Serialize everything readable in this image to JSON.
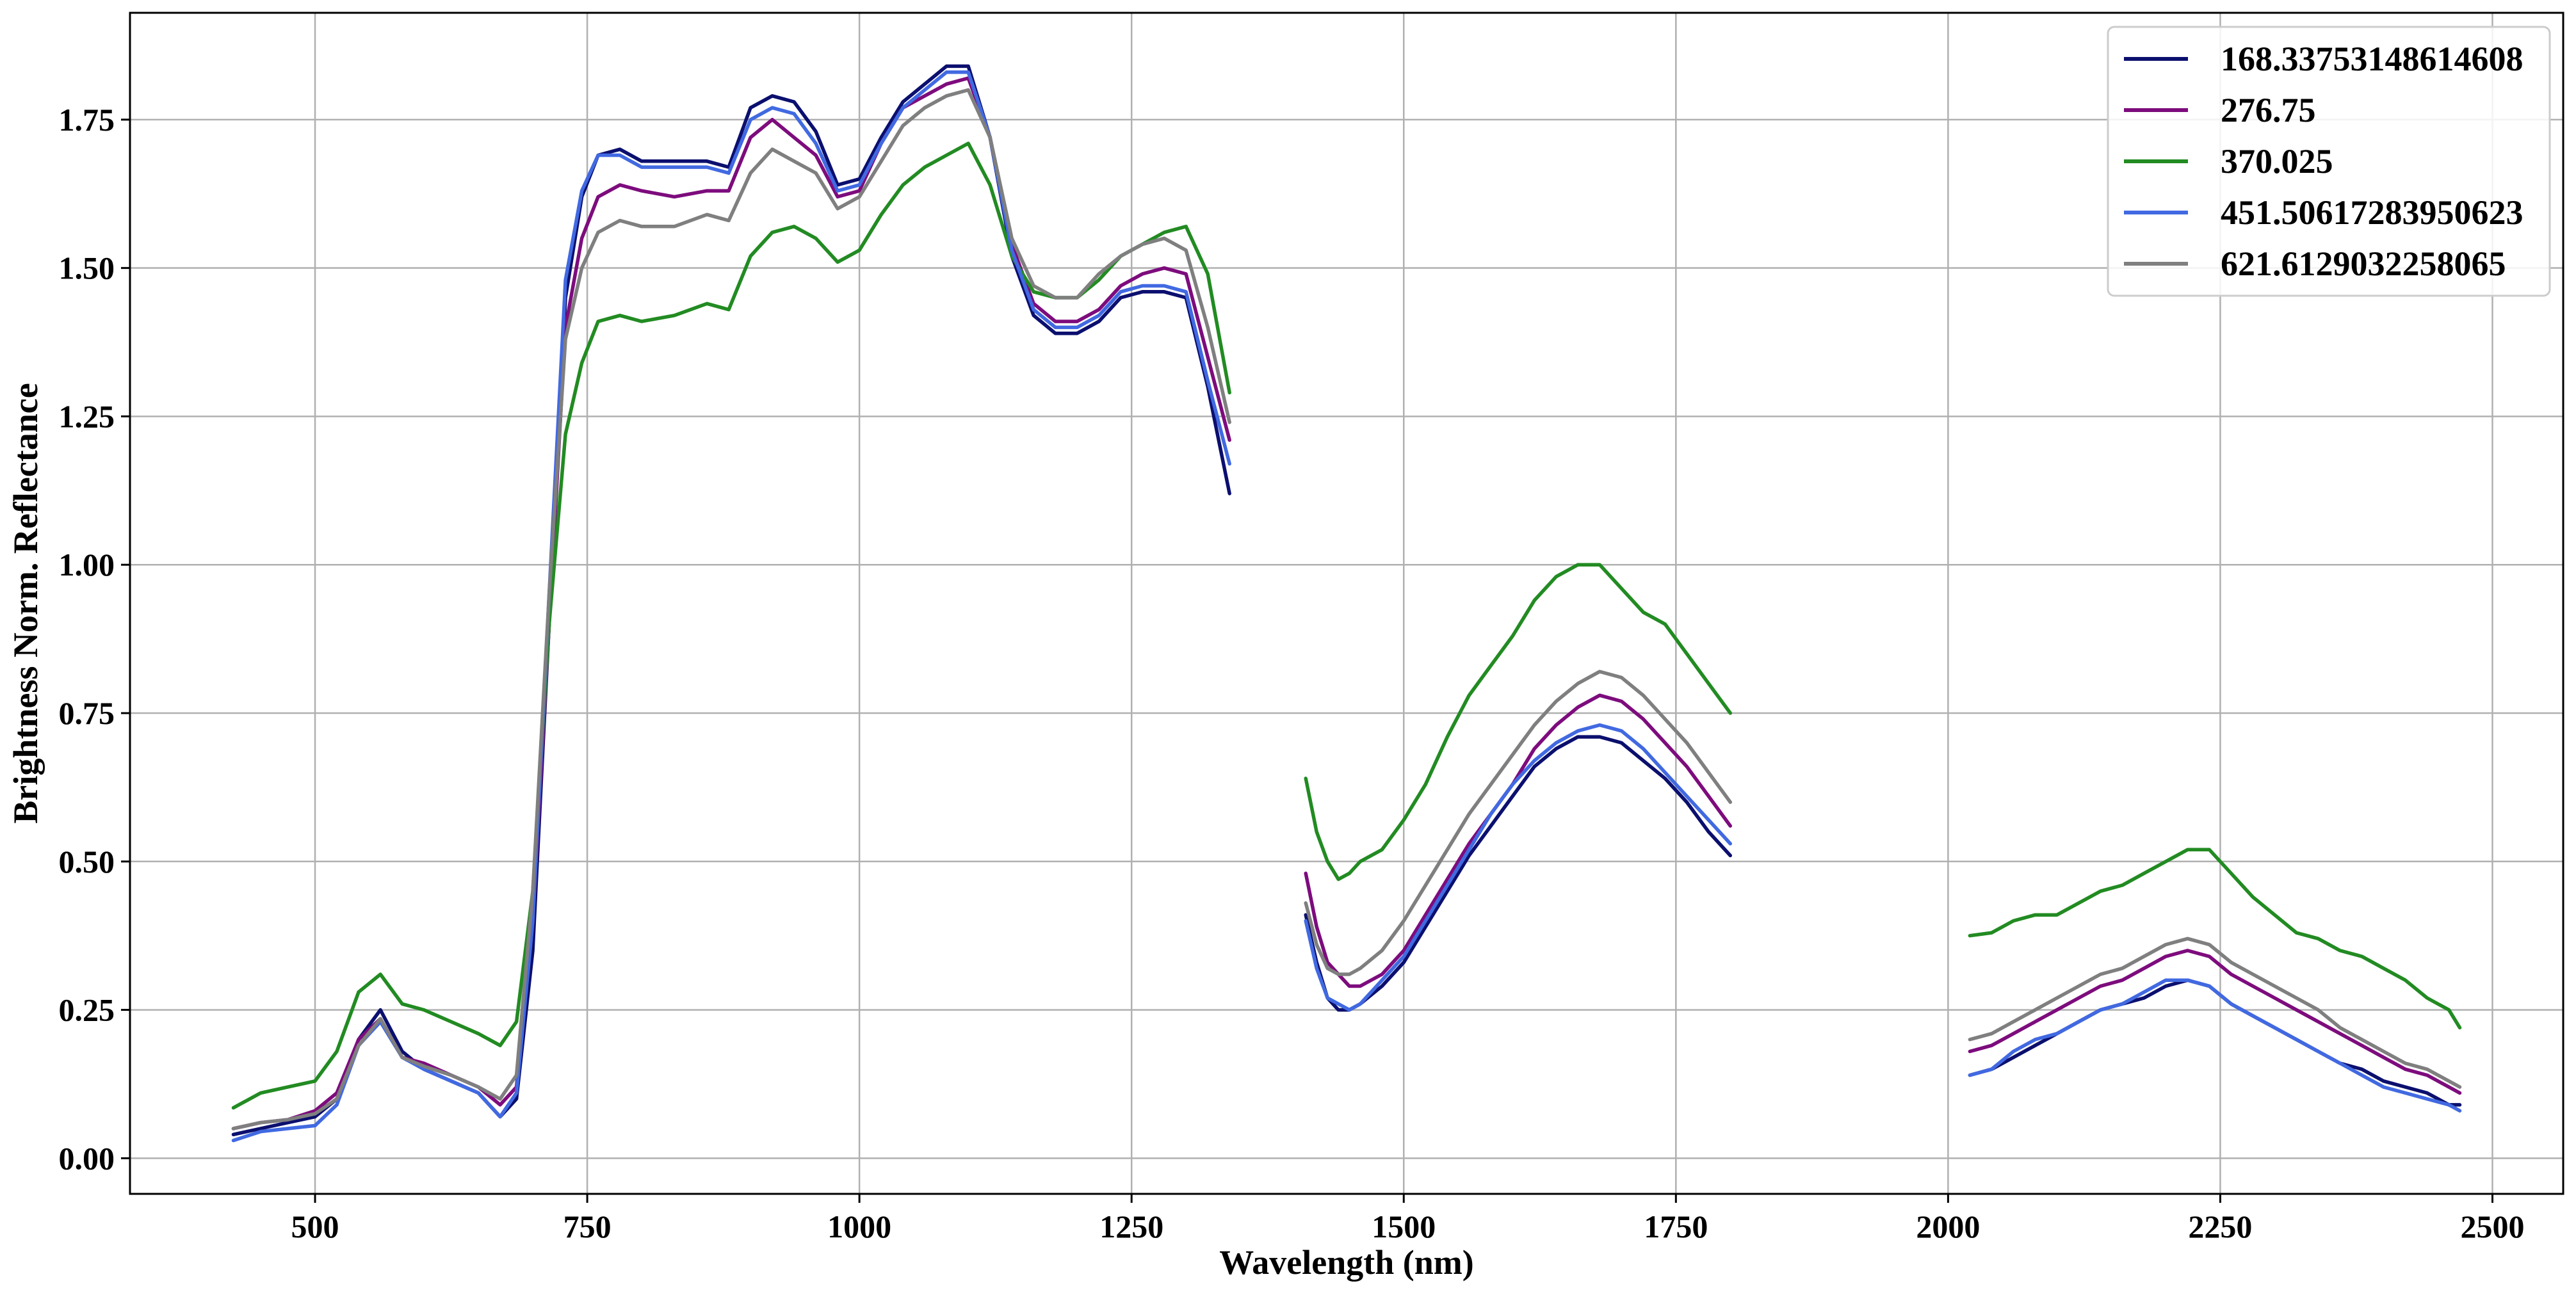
{
  "chart_data": {
    "type": "line",
    "title": "",
    "xlabel": "Wavelength (nm)",
    "ylabel": "Brightness Norm. Reflectance",
    "xlim": [
      330,
      2565
    ],
    "ylim": [
      -0.06,
      1.93
    ],
    "xticks": [
      500,
      750,
      1000,
      1250,
      1500,
      1750,
      2000,
      2250,
      2500
    ],
    "xtick_labels": [
      "500",
      "750",
      "1000",
      "1250",
      "1500",
      "1750",
      "2000",
      "2250",
      "2500"
    ],
    "yticks": [
      0.0,
      0.25,
      0.5,
      0.75,
      1.0,
      1.25,
      1.5,
      1.75
    ],
    "ytick_labels": [
      "0.00",
      "0.25",
      "0.50",
      "0.75",
      "1.00",
      "1.25",
      "1.50",
      "1.75"
    ],
    "grid": true,
    "legend_position": "top-right",
    "x_segments": [
      [
        425,
        450,
        475,
        500,
        520,
        540,
        560,
        580,
        600,
        625,
        650,
        670,
        685,
        700,
        715,
        730,
        745,
        760,
        780,
        800,
        830,
        860,
        880,
        900,
        920,
        940,
        960,
        980,
        1000,
        1020,
        1040,
        1060,
        1080,
        1100,
        1120,
        1140,
        1160,
        1180,
        1200,
        1220,
        1240,
        1260,
        1280,
        1300,
        1320,
        1340
      ],
      [
        1410,
        1420,
        1430,
        1440,
        1450,
        1460,
        1480,
        1500,
        1520,
        1540,
        1560,
        1580,
        1600,
        1620,
        1640,
        1660,
        1680,
        1700,
        1720,
        1740,
        1760,
        1780,
        1800
      ],
      [
        2020,
        2040,
        2060,
        2080,
        2100,
        2120,
        2140,
        2160,
        2180,
        2200,
        2220,
        2240,
        2260,
        2280,
        2300,
        2320,
        2340,
        2360,
        2380,
        2400,
        2420,
        2440,
        2460,
        2470
      ]
    ],
    "series": [
      {
        "name": "168.33753148614608",
        "color": "#0b0f6e",
        "values": [
          [
            0.04,
            0.05,
            0.06,
            0.07,
            0.1,
            0.2,
            0.25,
            0.18,
            0.15,
            0.13,
            0.11,
            0.07,
            0.1,
            0.35,
            0.9,
            1.45,
            1.62,
            1.69,
            1.7,
            1.68,
            1.68,
            1.68,
            1.67,
            1.77,
            1.79,
            1.78,
            1.73,
            1.64,
            1.65,
            1.72,
            1.78,
            1.81,
            1.84,
            1.84,
            1.72,
            1.52,
            1.42,
            1.39,
            1.39,
            1.41,
            1.45,
            1.46,
            1.46,
            1.45,
            1.3,
            1.12
          ],
          [
            0.41,
            0.33,
            0.27,
            0.25,
            0.25,
            0.26,
            0.29,
            0.33,
            0.39,
            0.45,
            0.51,
            0.56,
            0.61,
            0.66,
            0.69,
            0.71,
            0.71,
            0.7,
            0.67,
            0.64,
            0.6,
            0.55,
            0.51
          ],
          [
            0.14,
            0.15,
            0.17,
            0.19,
            0.21,
            0.23,
            0.25,
            0.26,
            0.27,
            0.29,
            0.3,
            0.29,
            0.26,
            0.24,
            0.22,
            0.2,
            0.18,
            0.16,
            0.15,
            0.13,
            0.12,
            0.11,
            0.09,
            0.09
          ]
        ]
      },
      {
        "name": "276.75",
        "color": "#7d0c7d",
        "values": [
          [
            0.05,
            0.06,
            0.065,
            0.08,
            0.11,
            0.2,
            0.235,
            0.17,
            0.16,
            0.14,
            0.12,
            0.09,
            0.12,
            0.4,
            0.9,
            1.4,
            1.55,
            1.62,
            1.64,
            1.63,
            1.62,
            1.63,
            1.63,
            1.72,
            1.75,
            1.72,
            1.69,
            1.62,
            1.63,
            1.71,
            1.77,
            1.79,
            1.81,
            1.82,
            1.72,
            1.54,
            1.44,
            1.41,
            1.41,
            1.43,
            1.47,
            1.49,
            1.5,
            1.49,
            1.35,
            1.21
          ],
          [
            0.48,
            0.39,
            0.33,
            0.31,
            0.29,
            0.29,
            0.31,
            0.35,
            0.41,
            0.47,
            0.53,
            0.58,
            0.63,
            0.69,
            0.73,
            0.76,
            0.78,
            0.77,
            0.74,
            0.7,
            0.66,
            0.61,
            0.56
          ],
          [
            0.18,
            0.19,
            0.21,
            0.23,
            0.25,
            0.27,
            0.29,
            0.3,
            0.32,
            0.34,
            0.35,
            0.34,
            0.31,
            0.29,
            0.27,
            0.25,
            0.23,
            0.21,
            0.19,
            0.17,
            0.15,
            0.14,
            0.12,
            0.11
          ]
        ]
      },
      {
        "name": "370.025",
        "color": "#228b22",
        "values": [
          [
            0.085,
            0.11,
            0.12,
            0.13,
            0.18,
            0.28,
            0.31,
            0.26,
            0.25,
            0.23,
            0.21,
            0.19,
            0.23,
            0.45,
            0.9,
            1.22,
            1.34,
            1.41,
            1.42,
            1.41,
            1.42,
            1.44,
            1.43,
            1.52,
            1.56,
            1.57,
            1.55,
            1.51,
            1.53,
            1.59,
            1.64,
            1.67,
            1.69,
            1.71,
            1.64,
            1.52,
            1.46,
            1.45,
            1.45,
            1.48,
            1.52,
            1.54,
            1.56,
            1.57,
            1.49,
            1.29
          ],
          [
            0.64,
            0.55,
            0.5,
            0.47,
            0.48,
            0.5,
            0.52,
            0.57,
            0.63,
            0.71,
            0.78,
            0.83,
            0.88,
            0.94,
            0.98,
            1.0,
            1.0,
            0.96,
            0.92,
            0.9,
            0.85,
            0.8,
            0.75
          ],
          [
            0.375,
            0.38,
            0.4,
            0.41,
            0.41,
            0.43,
            0.45,
            0.46,
            0.48,
            0.5,
            0.52,
            0.52,
            0.48,
            0.44,
            0.41,
            0.38,
            0.37,
            0.35,
            0.34,
            0.32,
            0.3,
            0.27,
            0.25,
            0.22
          ]
        ]
      },
      {
        "name": "451.50617283950623",
        "color": "#4169e1",
        "values": [
          [
            0.03,
            0.045,
            0.05,
            0.055,
            0.09,
            0.19,
            0.23,
            0.17,
            0.15,
            0.13,
            0.11,
            0.07,
            0.11,
            0.4,
            0.95,
            1.48,
            1.63,
            1.69,
            1.69,
            1.67,
            1.67,
            1.67,
            1.66,
            1.75,
            1.77,
            1.76,
            1.71,
            1.63,
            1.64,
            1.71,
            1.77,
            1.8,
            1.83,
            1.83,
            1.72,
            1.53,
            1.43,
            1.4,
            1.4,
            1.42,
            1.46,
            1.47,
            1.47,
            1.46,
            1.31,
            1.17
          ],
          [
            0.4,
            0.32,
            0.27,
            0.26,
            0.25,
            0.26,
            0.3,
            0.34,
            0.4,
            0.46,
            0.52,
            0.58,
            0.63,
            0.67,
            0.7,
            0.72,
            0.73,
            0.72,
            0.69,
            0.65,
            0.61,
            0.57,
            0.53
          ],
          [
            0.14,
            0.15,
            0.18,
            0.2,
            0.21,
            0.23,
            0.25,
            0.26,
            0.28,
            0.3,
            0.3,
            0.29,
            0.26,
            0.24,
            0.22,
            0.2,
            0.18,
            0.16,
            0.14,
            0.12,
            0.11,
            0.1,
            0.09,
            0.08
          ]
        ]
      },
      {
        "name": "621.6129032258065",
        "color": "#7f7f7f",
        "values": [
          [
            0.05,
            0.06,
            0.065,
            0.075,
            0.1,
            0.19,
            0.235,
            0.17,
            0.155,
            0.14,
            0.12,
            0.1,
            0.14,
            0.45,
            0.95,
            1.38,
            1.5,
            1.56,
            1.58,
            1.57,
            1.57,
            1.59,
            1.58,
            1.66,
            1.7,
            1.68,
            1.66,
            1.6,
            1.62,
            1.68,
            1.74,
            1.77,
            1.79,
            1.8,
            1.72,
            1.55,
            1.47,
            1.45,
            1.45,
            1.49,
            1.52,
            1.54,
            1.55,
            1.53,
            1.4,
            1.24
          ],
          [
            0.43,
            0.36,
            0.32,
            0.31,
            0.31,
            0.32,
            0.35,
            0.4,
            0.46,
            0.52,
            0.58,
            0.63,
            0.68,
            0.73,
            0.77,
            0.8,
            0.82,
            0.81,
            0.78,
            0.74,
            0.7,
            0.65,
            0.6
          ],
          [
            0.2,
            0.21,
            0.23,
            0.25,
            0.27,
            0.29,
            0.31,
            0.32,
            0.34,
            0.36,
            0.37,
            0.36,
            0.33,
            0.31,
            0.29,
            0.27,
            0.25,
            0.22,
            0.2,
            0.18,
            0.16,
            0.15,
            0.13,
            0.12
          ]
        ]
      }
    ]
  }
}
